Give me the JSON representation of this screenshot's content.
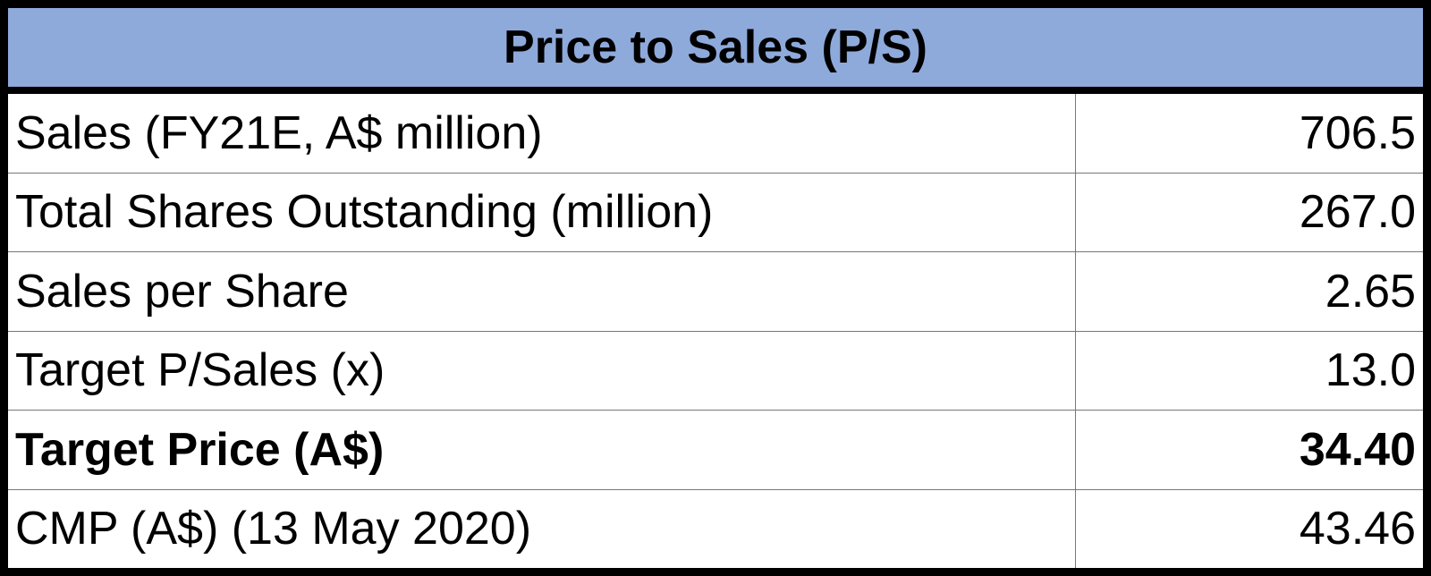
{
  "table": {
    "title": "Price to Sales (P/S)",
    "rows": [
      [
        "Sales (FY21E, A$ million)",
        "706.5"
      ],
      [
        "Total Shares Outstanding (million)",
        "267.0"
      ],
      [
        "Sales per Share",
        "2.65"
      ],
      [
        "Target P/Sales (x)",
        "13.0"
      ],
      [
        "Target Price (A$)",
        "34.40"
      ],
      [
        "CMP (A$) (13 May 2020)",
        "43.46"
      ]
    ]
  }
}
